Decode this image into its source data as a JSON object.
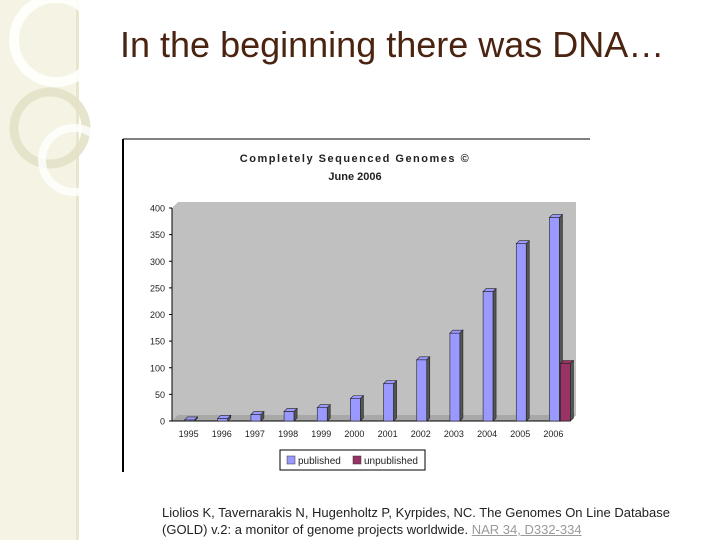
{
  "slide": {
    "title": "In the beginning there was DNA…",
    "citation": "Liolios K, Tavernarakis N, Hugenholtz P, Kyrpides, NC. The Genomes On Line Database (GOLD) v.2: a monitor of genome projects worldwide.",
    "citation_link": "NAR 34, D332-334"
  },
  "chart_data": {
    "type": "bar",
    "title": "Completely Sequenced Genomes ©",
    "subtitle": "June 2006",
    "categories": [
      "1995",
      "1996",
      "1997",
      "1998",
      "1999",
      "2000",
      "2001",
      "2002",
      "2003",
      "2004",
      "2005",
      "2006"
    ],
    "series": [
      {
        "name": "published",
        "values": [
          2,
          5,
          12,
          18,
          25,
          42,
          70,
          115,
          165,
          243,
          333,
          382
        ],
        "color": "#9999ff"
      },
      {
        "name": "unpublished",
        "values": [
          0,
          0,
          0,
          0,
          0,
          0,
          0,
          0,
          0,
          0,
          0,
          108
        ],
        "color": "#993366"
      }
    ],
    "yticks": [
      "0",
      "50",
      "100",
      "150",
      "200",
      "250",
      "300",
      "350",
      "400"
    ],
    "ylim": [
      0,
      400
    ],
    "grid": false,
    "legend_position": "bottom"
  },
  "colors": {
    "title": "#4a2410",
    "plot_area": "#c0c0c0",
    "link": "#9a9a9a",
    "decor": "#f5f3e3"
  }
}
